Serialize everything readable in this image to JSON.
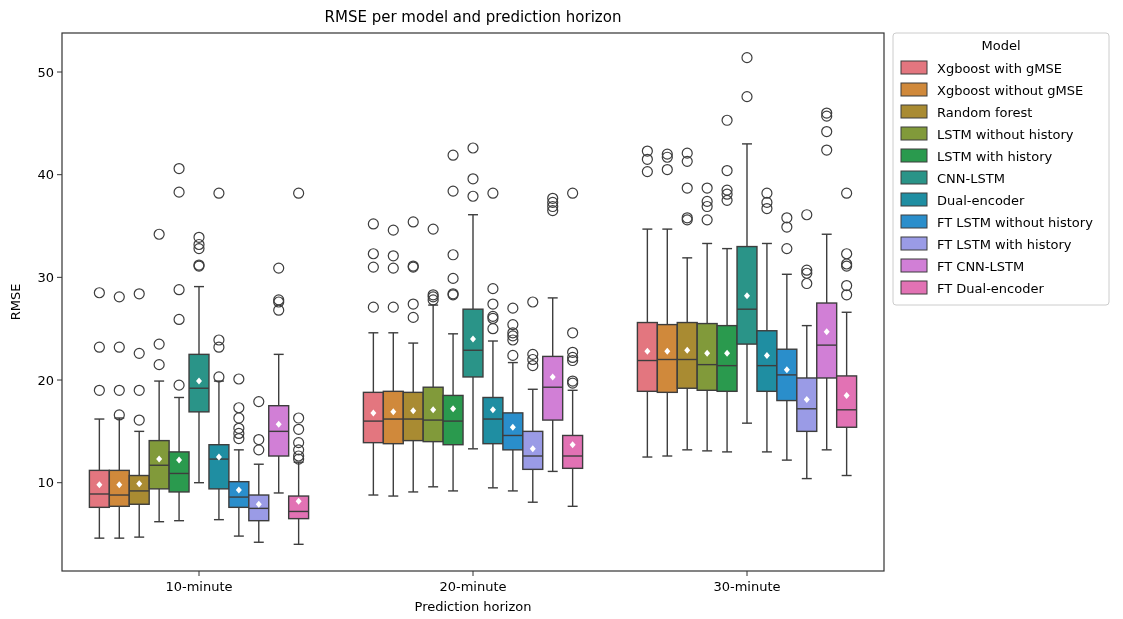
{
  "chart_data": {
    "type": "box",
    "title": "RMSE per model and prediction horizon",
    "xlabel": "Prediction horizon",
    "ylabel": "RMSE",
    "legend_title": "Model",
    "legend": "right",
    "grid": false,
    "categories": [
      "10-minute",
      "20-minute",
      "30-minute"
    ],
    "ylim": [
      1.4,
      53.8
    ],
    "yticks": [
      10,
      20,
      30,
      40,
      50
    ],
    "series": [
      {
        "name": "Xgboost with gMSE",
        "color": "#e3767f",
        "boxes": [
          {
            "low": 4.6,
            "q1": 7.6,
            "median": 8.9,
            "q3": 11.2,
            "high": 16.2,
            "mean": 9.8,
            "outliers": [
              19,
              23.2,
              28.5
            ]
          },
          {
            "low": 8.8,
            "q1": 13.9,
            "median": 16.0,
            "q3": 18.8,
            "high": 24.6,
            "mean": 16.8,
            "outliers": [
              27.1,
              31.0,
              32.3,
              35.2
            ]
          },
          {
            "low": 12.5,
            "q1": 18.9,
            "median": 21.9,
            "q3": 25.6,
            "high": 34.7,
            "mean": 22.8,
            "outliers": [
              40.3,
              41.5,
              42.3
            ]
          }
        ]
      },
      {
        "name": "Xgboost without gMSE",
        "color": "#d0893b",
        "boxes": [
          {
            "low": 4.6,
            "q1": 7.7,
            "median": 8.8,
            "q3": 11.2,
            "high": 16.3,
            "mean": 9.8,
            "outliers": [
              16.6,
              19,
              23.2,
              28.1
            ]
          },
          {
            "low": 8.7,
            "q1": 13.8,
            "median": 16.2,
            "q3": 18.9,
            "high": 24.6,
            "mean": 16.9,
            "outliers": [
              27.1,
              30.9,
              32.1,
              34.6
            ]
          },
          {
            "low": 12.6,
            "q1": 18.8,
            "median": 22.0,
            "q3": 25.4,
            "high": 34.7,
            "mean": 22.8,
            "outliers": [
              40.5,
              41.7,
              42.0
            ]
          }
        ]
      },
      {
        "name": "Random forest",
        "color": "#a98b32",
        "boxes": [
          {
            "low": 4.7,
            "q1": 7.9,
            "median": 9.2,
            "q3": 10.7,
            "high": 15.0,
            "mean": 9.9,
            "outliers": [
              16.1,
              19,
              22.6,
              28.4
            ]
          },
          {
            "low": 9.1,
            "q1": 14.1,
            "median": 16.2,
            "q3": 18.8,
            "high": 23.6,
            "mean": 17.0,
            "outliers": [
              26.1,
              27.4,
              31.0,
              31.1,
              35.4
            ]
          },
          {
            "low": 13.2,
            "q1": 19.2,
            "median": 22.0,
            "q3": 25.6,
            "high": 31.9,
            "mean": 22.9,
            "outliers": [
              35.6,
              35.8,
              38.7,
              41.3,
              42.1
            ]
          }
        ]
      },
      {
        "name": "LSTM without history",
        "color": "#819a3a",
        "boxes": [
          {
            "low": 6.2,
            "q1": 9.4,
            "median": 11.7,
            "q3": 14.1,
            "high": 19.9,
            "mean": 12.3,
            "outliers": [
              21.5,
              23.5,
              34.2
            ]
          },
          {
            "low": 9.6,
            "q1": 14.0,
            "median": 16.1,
            "q3": 19.3,
            "high": 27.3,
            "mean": 17.1,
            "outliers": [
              27.8,
              28.1,
              28.3,
              34.7
            ]
          },
          {
            "low": 13.1,
            "q1": 19.0,
            "median": 21.5,
            "q3": 25.5,
            "high": 33.3,
            "mean": 22.6,
            "outliers": [
              35.6,
              36.9,
              37.4,
              38.7
            ]
          }
        ]
      },
      {
        "name": "LSTM with history",
        "color": "#2a9a4e",
        "boxes": [
          {
            "low": 6.3,
            "q1": 9.1,
            "median": 10.9,
            "q3": 13.0,
            "high": 18.3,
            "mean": 12.2,
            "outliers": [
              19.5,
              25.9,
              28.8,
              38.3,
              40.6
            ]
          },
          {
            "low": 9.2,
            "q1": 13.7,
            "median": 16.0,
            "q3": 18.5,
            "high": 24.5,
            "mean": 17.2,
            "outliers": [
              28.3,
              28.4,
              29.9,
              32.2,
              38.4,
              41.9
            ]
          },
          {
            "low": 13.0,
            "q1": 18.9,
            "median": 21.4,
            "q3": 25.3,
            "high": 32.8,
            "mean": 22.6,
            "outliers": [
              37.5,
              38.1,
              38.5,
              40.4,
              45.3
            ]
          }
        ]
      },
      {
        "name": "CNN-LSTM",
        "color": "#2a9488",
        "boxes": [
          {
            "low": 10.0,
            "q1": 16.9,
            "median": 19.2,
            "q3": 22.5,
            "high": 29.1,
            "mean": 19.9,
            "outliers": [
              31.1,
              31.2,
              32.8,
              33.2,
              33.9
            ]
          },
          {
            "low": 13.3,
            "q1": 20.3,
            "median": 22.9,
            "q3": 26.9,
            "high": 36.1,
            "mean": 24.0,
            "outliers": [
              37.9,
              39.6,
              42.6
            ]
          },
          {
            "low": 15.8,
            "q1": 23.5,
            "median": 26.9,
            "q3": 33.0,
            "high": 43.0,
            "mean": 28.2,
            "outliers": [
              47.6,
              51.4
            ]
          }
        ]
      },
      {
        "name": "Dual-encoder",
        "color": "#1f8ea2",
        "boxes": [
          {
            "low": 6.4,
            "q1": 9.4,
            "median": 12.3,
            "q3": 13.7,
            "high": 19.9,
            "mean": 12.5,
            "outliers": [
              20.3,
              23.2,
              23.9,
              38.2
            ]
          },
          {
            "low": 9.5,
            "q1": 13.8,
            "median": 16.2,
            "q3": 18.3,
            "high": 23.8,
            "mean": 17.1,
            "outliers": [
              25.0,
              26.0,
              26.2,
              27.4,
              28.9,
              38.2
            ]
          },
          {
            "low": 13.0,
            "q1": 18.9,
            "median": 21.4,
            "q3": 24.8,
            "high": 33.3,
            "mean": 22.4,
            "outliers": [
              36.7,
              37.3,
              38.2
            ]
          }
        ]
      },
      {
        "name": "FT LSTM without history",
        "color": "#2a8ecb",
        "boxes": [
          {
            "low": 4.8,
            "q1": 7.6,
            "median": 8.6,
            "q3": 10.1,
            "high": 13.2,
            "mean": 9.3,
            "outliers": [
              14.3,
              14.8,
              15.3,
              16.3,
              17.3,
              20.1
            ]
          },
          {
            "low": 9.2,
            "q1": 13.2,
            "median": 14.6,
            "q3": 16.8,
            "high": 21.7,
            "mean": 15.4,
            "outliers": [
              22.4,
              23.9,
              24.3,
              24.6,
              25.4,
              27.0
            ]
          },
          {
            "low": 12.2,
            "q1": 18.0,
            "median": 20.5,
            "q3": 23.0,
            "high": 30.3,
            "mean": 21.0,
            "outliers": [
              32.8,
              34.9,
              35.8
            ]
          }
        ]
      },
      {
        "name": "FT LSTM with history",
        "color": "#9a9be6",
        "boxes": [
          {
            "low": 4.2,
            "q1": 6.3,
            "median": 7.5,
            "q3": 8.8,
            "high": 11.8,
            "mean": 7.9,
            "outliers": [
              13.2,
              14.2,
              17.9
            ]
          },
          {
            "low": 8.1,
            "q1": 11.3,
            "median": 12.6,
            "q3": 15.0,
            "high": 19.1,
            "mean": 13.3,
            "outliers": [
              21.4,
              22.0,
              22.5,
              27.6
            ]
          },
          {
            "low": 10.4,
            "q1": 15.0,
            "median": 17.2,
            "q3": 20.2,
            "high": 25.3,
            "mean": 18.1,
            "outliers": [
              29.4,
              30.4,
              30.7,
              36.1
            ]
          }
        ]
      },
      {
        "name": "FT CNN-LSTM",
        "color": "#d17fd6",
        "boxes": [
          {
            "low": 9.0,
            "q1": 12.6,
            "median": 15.0,
            "q3": 17.5,
            "high": 22.5,
            "mean": 15.7,
            "outliers": [
              26.8,
              27.6,
              27.8,
              30.9
            ]
          },
          {
            "low": 11.1,
            "q1": 16.1,
            "median": 19.3,
            "q3": 22.3,
            "high": 28.0,
            "mean": 20.3,
            "outliers": [
              36.5,
              36.9,
              37.3,
              37.7
            ]
          },
          {
            "low": 13.2,
            "q1": 20.2,
            "median": 23.4,
            "q3": 27.5,
            "high": 34.2,
            "mean": 24.7,
            "outliers": [
              42.4,
              44.2,
              45.7,
              46.0
            ]
          }
        ]
      },
      {
        "name": "FT Dual-encoder",
        "color": "#e272b4",
        "boxes": [
          {
            "low": 4.0,
            "q1": 6.5,
            "median": 7.2,
            "q3": 8.7,
            "high": 12.0,
            "mean": 8.2,
            "outliers": [
              12.3,
              12.6,
              13.2,
              13.9,
              15.2,
              16.3,
              38.2
            ]
          },
          {
            "low": 7.7,
            "q1": 11.4,
            "median": 12.6,
            "q3": 14.6,
            "high": 19.0,
            "mean": 13.7,
            "outliers": [
              19.7,
              19.9,
              21.9,
              22.2,
              22.7,
              24.6,
              38.2
            ]
          },
          {
            "low": 10.7,
            "q1": 15.4,
            "median": 17.1,
            "q3": 20.4,
            "high": 26.6,
            "mean": 18.5,
            "outliers": [
              28.3,
              29.2,
              31.1,
              31.3,
              32.3,
              38.2
            ]
          }
        ]
      }
    ]
  }
}
